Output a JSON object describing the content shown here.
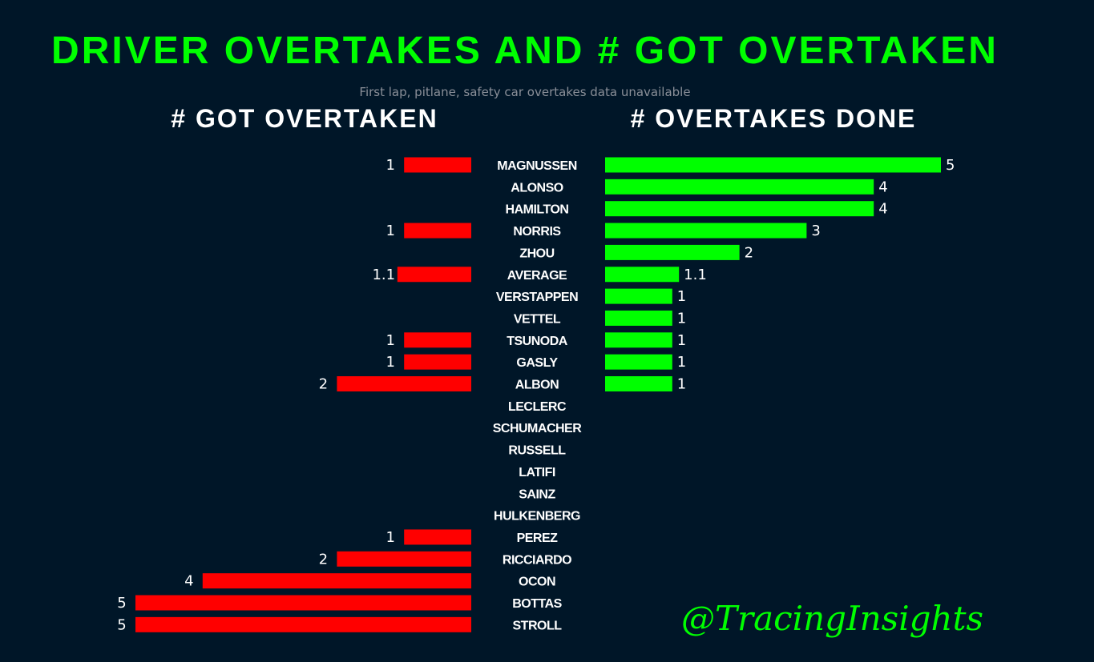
{
  "header": {
    "title": "DRIVER OVERTAKES AND # GOT OVERTAKEN",
    "subtitle": "First lap, pitlane, safety car overtakes data unavailable"
  },
  "watermark": "@TracingInsights",
  "colors": {
    "background": "#001628",
    "overtakes": "#00ff00",
    "got_overtaken": "#ff0000",
    "text": "#ffffff"
  },
  "chart_data": {
    "type": "bar",
    "orientation": "horizontal-butterfly",
    "categories": [
      "MAGNUSSEN",
      "ALONSO",
      "HAMILTON",
      "NORRIS",
      "ZHOU",
      "AVERAGE",
      "VERSTAPPEN",
      "VETTEL",
      "TSUNODA",
      "GASLY",
      "ALBON",
      "LECLERC",
      "SCHUMACHER",
      "RUSSELL",
      "LATIFI",
      "SAINZ",
      "HULKENBERG",
      "PEREZ",
      "RICCIARDO",
      "OCON",
      "BOTTAS",
      "STROLL"
    ],
    "panels": [
      {
        "title": "# GOT OVERTAKEN",
        "side": "left",
        "values": [
          1,
          0,
          0,
          1,
          0,
          1.1,
          0,
          0,
          1,
          1,
          2,
          0,
          0,
          0,
          0,
          0,
          0,
          1,
          2,
          4,
          5,
          5
        ],
        "labels": [
          "1",
          "",
          "",
          "1",
          "",
          "1.1",
          "",
          "",
          "1",
          "1",
          "2",
          "",
          "",
          "",
          "",
          "",
          "",
          "1",
          "2",
          "4",
          "5",
          "5"
        ]
      },
      {
        "title": "# OVERTAKES DONE",
        "side": "right",
        "values": [
          5,
          4,
          4,
          3,
          2,
          1.1,
          1,
          1,
          1,
          1,
          1,
          0,
          0,
          0,
          0,
          0,
          0,
          0,
          0,
          0,
          0,
          0
        ],
        "labels": [
          "5",
          "4",
          "4",
          "3",
          "2",
          "1.1",
          "1",
          "1",
          "1",
          "1",
          "1",
          "",
          "",
          "",
          "",
          "",
          "",
          "",
          "",
          "",
          "",
          ""
        ]
      }
    ],
    "xlim": [
      0,
      5
    ],
    "grid": false,
    "legend": "none"
  }
}
